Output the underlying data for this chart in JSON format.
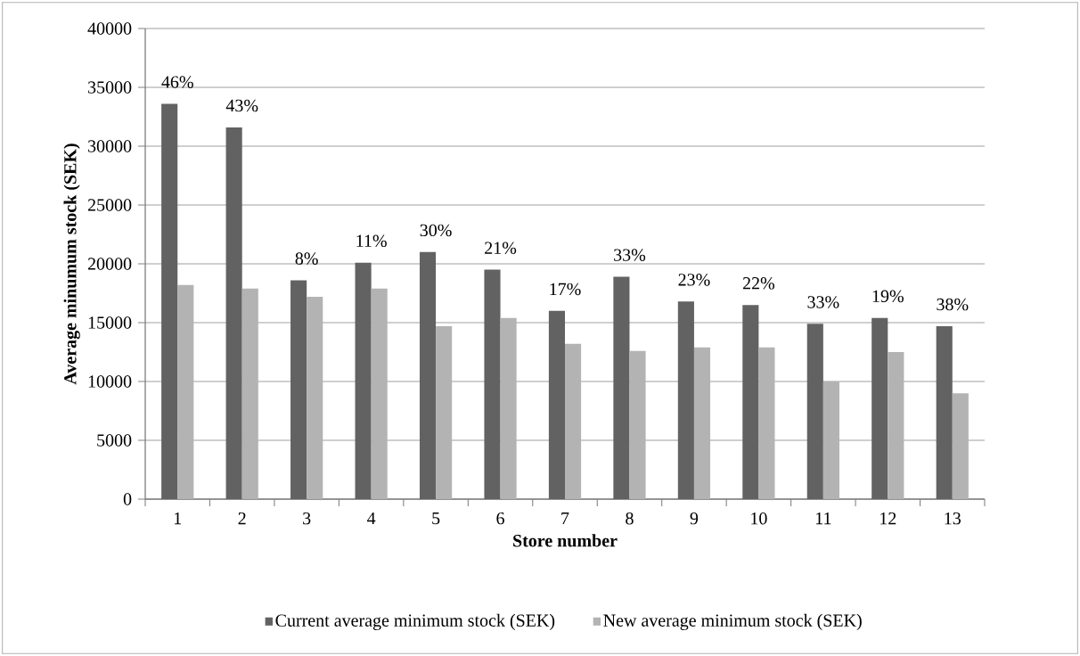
{
  "chart_data": {
    "type": "bar",
    "xlabel": "Store number",
    "ylabel": "Average minumum stock (SEK)",
    "categories": [
      "1",
      "2",
      "3",
      "4",
      "5",
      "6",
      "7",
      "8",
      "9",
      "10",
      "11",
      "12",
      "13"
    ],
    "series": [
      {
        "name": "Current average minimum stock (SEK)",
        "color": "#626262",
        "values": [
          33600,
          31600,
          18600,
          20100,
          21000,
          19500,
          16000,
          18900,
          16800,
          16500,
          14900,
          15400,
          14700
        ]
      },
      {
        "name": "New average minimum stock (SEK)",
        "color": "#b3b3b3",
        "values": [
          18200,
          17900,
          17200,
          17900,
          14700,
          15400,
          13200,
          12600,
          12900,
          12900,
          10000,
          12500,
          9000
        ]
      }
    ],
    "ylim": [
      0,
      40000
    ],
    "yticks": [
      0,
      5000,
      10000,
      15000,
      20000,
      25000,
      30000,
      35000,
      40000
    ],
    "grid": "y",
    "legend": "bottom",
    "annotations": [
      {
        "text": "46%",
        "x": "1",
        "y": 33600
      },
      {
        "text": "43%",
        "x": "2",
        "y": 31600
      },
      {
        "text": "8%",
        "x": "3",
        "y": 18600
      },
      {
        "text": "11%",
        "x": "4",
        "y": 20100
      },
      {
        "text": "30%",
        "x": "5",
        "y": 21000
      },
      {
        "text": "21%",
        "x": "6",
        "y": 19500
      },
      {
        "text": "17%",
        "x": "7",
        "y": 16000
      },
      {
        "text": "33%",
        "x": "8",
        "y": 18900
      },
      {
        "text": "23%",
        "x": "9",
        "y": 16800
      },
      {
        "text": "22%",
        "x": "10",
        "y": 16500
      },
      {
        "text": "33%",
        "x": "11",
        "y": 14900
      },
      {
        "text": "19%",
        "x": "12",
        "y": 15400
      },
      {
        "text": "38%",
        "x": "13",
        "y": 14700
      }
    ]
  }
}
